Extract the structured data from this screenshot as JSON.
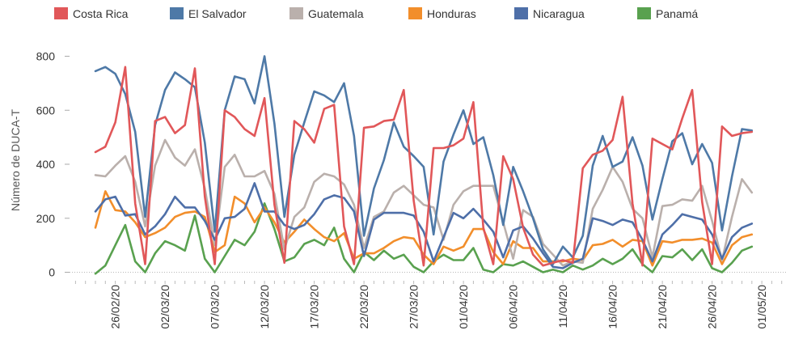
{
  "chart_data": {
    "type": "line",
    "ylabel": "Número de  DUCA-T",
    "ylim": [
      -20,
      820
    ],
    "y_ticks": [
      0,
      200,
      400,
      600,
      800
    ],
    "grid": false,
    "legend_placement": "top",
    "x_tick_labels": [
      "26/02/20",
      "02/03/20",
      "07/03/20",
      "12/03/20",
      "17/03/20",
      "22/03/20",
      "27/03/20",
      "01/04/20",
      "06/04/20",
      "11/04/20",
      "16/04/20",
      "21/04/20",
      "26/04/20",
      "01/05/20"
    ],
    "x": [
      "24/02/20",
      "25/02/20",
      "26/02/20",
      "27/02/20",
      "28/02/20",
      "29/02/20",
      "01/03/20",
      "02/03/20",
      "03/03/20",
      "04/03/20",
      "05/03/20",
      "06/03/20",
      "07/03/20",
      "08/03/20",
      "09/03/20",
      "10/03/20",
      "11/03/20",
      "12/03/20",
      "13/03/20",
      "14/03/20",
      "15/03/20",
      "16/03/20",
      "17/03/20",
      "18/03/20",
      "19/03/20",
      "20/03/20",
      "21/03/20",
      "22/03/20",
      "23/03/20",
      "24/03/20",
      "25/03/20",
      "26/03/20",
      "27/03/20",
      "28/03/20",
      "29/03/20",
      "30/03/20",
      "31/03/20",
      "01/04/20",
      "02/04/20",
      "03/04/20",
      "04/04/20",
      "05/04/20",
      "06/04/20",
      "07/04/20",
      "08/04/20",
      "09/04/20",
      "10/04/20",
      "11/04/20",
      "12/04/20",
      "13/04/20",
      "14/04/20",
      "15/04/20",
      "16/04/20",
      "17/04/20",
      "18/04/20",
      "19/04/20",
      "20/04/20",
      "21/04/20",
      "22/04/20",
      "23/04/20",
      "24/04/20",
      "25/04/20",
      "26/04/20",
      "27/04/20",
      "28/04/20",
      "29/04/20",
      "30/04/20"
    ],
    "series": [
      {
        "name": "Costa Rica",
        "color": "#e15759",
        "values": [
          445,
          465,
          555,
          760,
          255,
          30,
          560,
          575,
          515,
          545,
          755,
          280,
          30,
          600,
          575,
          530,
          505,
          645,
          250,
          35,
          560,
          530,
          480,
          605,
          620,
          170,
          30,
          535,
          540,
          560,
          565,
          675,
          265,
          25,
          460,
          460,
          470,
          495,
          630,
          165,
          30,
          430,
          345,
          165,
          65,
          25,
          35,
          45,
          35,
          385,
          435,
          450,
          490,
          650,
          255,
          25,
          495,
          475,
          455,
          570,
          675,
          260,
          30,
          540,
          505,
          515,
          520
        ]
      },
      {
        "name": "El Salvador",
        "color": "#4e79a7",
        "values": [
          745,
          760,
          735,
          660,
          520,
          205,
          545,
          675,
          740,
          715,
          685,
          480,
          150,
          600,
          725,
          715,
          625,
          800,
          550,
          205,
          435,
          555,
          670,
          655,
          630,
          700,
          505,
          135,
          310,
          415,
          555,
          465,
          430,
          390,
          140,
          410,
          510,
          600,
          475,
          500,
          360,
          175,
          390,
          300,
          200,
          85,
          30,
          95,
          55,
          135,
          395,
          505,
          390,
          410,
          500,
          395,
          195,
          345,
          485,
          515,
          400,
          475,
          405,
          155,
          355,
          530,
          525
        ]
      },
      {
        "name": "Guatemala",
        "color": "#bab0ac",
        "values": [
          360,
          355,
          395,
          430,
          335,
          170,
          395,
          490,
          425,
          395,
          455,
          310,
          100,
          390,
          435,
          355,
          355,
          375,
          290,
          85,
          205,
          240,
          335,
          365,
          355,
          325,
          250,
          90,
          205,
          225,
          295,
          320,
          285,
          250,
          240,
          120,
          250,
          300,
          320,
          320,
          320,
          185,
          50,
          230,
          205,
          105,
          65,
          25,
          40,
          35,
          235,
          305,
          390,
          335,
          235,
          200,
          55,
          245,
          250,
          270,
          265,
          320,
          190,
          45,
          205,
          345,
          295
        ]
      },
      {
        "name": "Honduras",
        "color": "#f28e2b",
        "values": [
          165,
          300,
          230,
          225,
          185,
          130,
          145,
          165,
          205,
          220,
          225,
          205,
          75,
          100,
          280,
          255,
          185,
          240,
          185,
          110,
          150,
          195,
          160,
          130,
          115,
          145,
          50,
          70,
          70,
          90,
          115,
          130,
          125,
          65,
          30,
          95,
          80,
          95,
          160,
          160,
          75,
          30,
          115,
          90,
          90,
          40,
          40,
          40,
          50,
          45,
          100,
          105,
          120,
          95,
          120,
          115,
          25,
          115,
          110,
          120,
          120,
          125,
          110,
          30,
          100,
          130,
          140
        ]
      },
      {
        "name": "Nicaragua",
        "color": "#4e6fa8",
        "values": [
          225,
          270,
          280,
          210,
          215,
          140,
          170,
          215,
          280,
          240,
          240,
          190,
          120,
          200,
          205,
          235,
          330,
          225,
          225,
          175,
          160,
          175,
          215,
          270,
          285,
          275,
          225,
          60,
          195,
          220,
          220,
          220,
          210,
          150,
          40,
          130,
          220,
          200,
          235,
          195,
          150,
          55,
          155,
          170,
          125,
          70,
          20,
          15,
          35,
          50,
          200,
          190,
          175,
          195,
          185,
          120,
          40,
          140,
          175,
          215,
          205,
          195,
          140,
          50,
          130,
          165,
          180
        ]
      },
      {
        "name": "Panamá",
        "color": "#59a14f",
        "values": [
          -5,
          25,
          100,
          175,
          40,
          0,
          70,
          115,
          100,
          80,
          210,
          50,
          0,
          60,
          120,
          100,
          150,
          255,
          160,
          40,
          55,
          105,
          120,
          100,
          165,
          50,
          0,
          75,
          45,
          80,
          50,
          65,
          20,
          0,
          40,
          65,
          45,
          45,
          90,
          10,
          0,
          30,
          25,
          40,
          20,
          0,
          10,
          0,
          25,
          10,
          25,
          50,
          30,
          50,
          85,
          30,
          0,
          60,
          55,
          85,
          45,
          85,
          15,
          0,
          35,
          80,
          95
        ]
      }
    ]
  }
}
